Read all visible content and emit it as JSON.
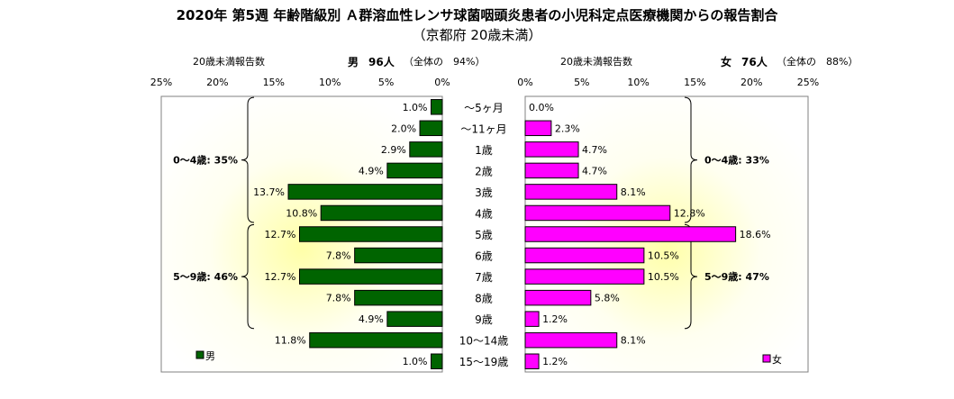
{
  "title": "2020年 第5週 年齢階級別 Ａ群溶血性レンサ球菌咽頭炎患者の小児科定点医療機関からの報告割合",
  "subtitle": "（京都府 20歳未満）",
  "male_header": {
    "label": "20歳未満報告数",
    "sex": "男",
    "count": "96人",
    "share": "（全体の　94%）"
  },
  "female_header": {
    "label": "20歳未満報告数",
    "sex": "女",
    "count": "76人",
    "share": "（全体の　88%）"
  },
  "chart_data": {
    "type": "bar",
    "orientation": "horizontal-population-pyramid",
    "categories": [
      "～5ヶ月",
      "～11ヶ月",
      "1歳",
      "2歳",
      "3歳",
      "4歳",
      "5歳",
      "6歳",
      "7歳",
      "8歳",
      "9歳",
      "10～14歳",
      "15～19歳"
    ],
    "series": [
      {
        "name": "男",
        "side": "left",
        "color": "#006400",
        "values": [
          1.0,
          2.0,
          2.9,
          4.9,
          13.7,
          10.8,
          12.7,
          7.8,
          12.7,
          7.8,
          4.9,
          11.8,
          1.0
        ]
      },
      {
        "name": "女",
        "side": "right",
        "color": "#ff00ff",
        "values": [
          0.0,
          2.3,
          4.7,
          4.7,
          8.1,
          12.8,
          18.6,
          10.5,
          10.5,
          5.8,
          1.2,
          8.1,
          1.2
        ]
      }
    ],
    "xlim": [
      0,
      25
    ],
    "ticks": [
      "25%",
      "20%",
      "15%",
      "10%",
      "5%",
      "0%"
    ],
    "ticks_right": [
      "0%",
      "5%",
      "10%",
      "15%",
      "20%",
      "25%"
    ],
    "annotations": [
      {
        "side": "left",
        "text": "0～4歳: 35%",
        "from_category": 0,
        "to_category": 5
      },
      {
        "side": "left",
        "text": "5～9歳: 46%",
        "from_category": 6,
        "to_category": 10
      },
      {
        "side": "right",
        "text": "0～4歳: 33%",
        "from_category": 0,
        "to_category": 5
      },
      {
        "side": "right",
        "text": "5～9歳: 47%",
        "from_category": 6,
        "to_category": 10
      }
    ],
    "legend": [
      {
        "label": "男",
        "position": "bottom-left"
      },
      {
        "label": "女",
        "position": "bottom-right"
      }
    ],
    "background": "yellow-radial-gradient"
  }
}
